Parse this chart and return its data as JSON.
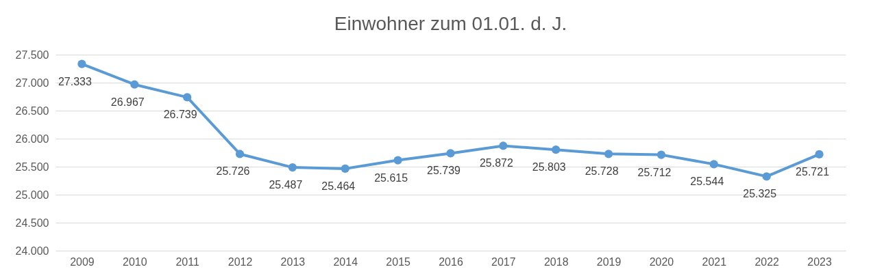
{
  "chart_data": {
    "type": "line",
    "title": "Einwohner zum 01.01. d. J.",
    "categories": [
      "2009",
      "2010",
      "2011",
      "2012",
      "2013",
      "2014",
      "2015",
      "2016",
      "2017",
      "2018",
      "2019",
      "2020",
      "2021",
      "2022",
      "2023"
    ],
    "series": [
      {
        "color": "#5b9bd5",
        "values": [
          27333,
          26967,
          26739,
          25726,
          25487,
          25464,
          25615,
          25739,
          25872,
          25803,
          25728,
          25712,
          25544,
          25325,
          25721
        ],
        "value_labels": [
          "27.333",
          "26.967",
          "26.739",
          "25.726",
          "25.487",
          "25.464",
          "25.615",
          "25.739",
          "25.872",
          "25.803",
          "25.728",
          "25.712",
          "25.544",
          "25.325",
          "25.721"
        ]
      }
    ],
    "ylim": [
      24000,
      27500
    ],
    "yticks": [
      {
        "value": 24000,
        "label": "24.000"
      },
      {
        "value": 24500,
        "label": "24.500"
      },
      {
        "value": 25000,
        "label": "25.000"
      },
      {
        "value": 25500,
        "label": "25.500"
      },
      {
        "value": 26000,
        "label": "26.000"
      },
      {
        "value": 26500,
        "label": "26.500"
      },
      {
        "value": 27000,
        "label": "27.000"
      },
      {
        "value": 27500,
        "label": "27.500"
      }
    ],
    "grid": "y",
    "marker": "circle",
    "line_style": "solid"
  }
}
